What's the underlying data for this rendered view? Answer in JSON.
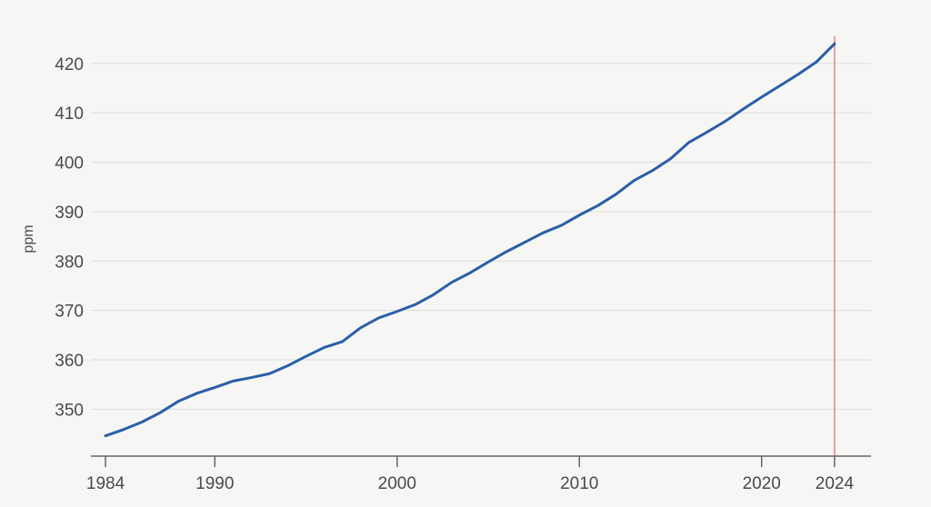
{
  "chart_data": {
    "type": "line",
    "title": "",
    "xlabel": "",
    "ylabel": "ppm",
    "xlim": [
      1983.2,
      2026.0
    ],
    "ylim": [
      340.5,
      425.5
    ],
    "yticks": [
      350,
      360,
      370,
      380,
      390,
      400,
      410,
      420
    ],
    "xticks": [
      1984,
      1990,
      2000,
      2010,
      2020,
      2024
    ],
    "grid": true,
    "legend": "none",
    "marker_year": 2024,
    "marker_color": "#e8828a",
    "line_color": "#2b5ea7",
    "series": [
      {
        "x": [
          1984,
          1985,
          1986,
          1987,
          1988,
          1989,
          1990,
          1991,
          1992,
          1993,
          1994,
          1995,
          1996,
          1997,
          1998,
          1999,
          2000,
          2001,
          2002,
          2003,
          2004,
          2005,
          2006,
          2007,
          2008,
          2009,
          2010,
          2011,
          2012,
          2013,
          2014,
          2015,
          2016,
          2017,
          2018,
          2019,
          2020,
          2021,
          2022,
          2023,
          2024
        ],
        "values": [
          344.6,
          345.9,
          347.4,
          349.3,
          351.6,
          353.2,
          354.4,
          355.7,
          356.4,
          357.2,
          358.8,
          360.7,
          362.5,
          363.7,
          366.5,
          368.5,
          369.8,
          371.2,
          373.2,
          375.7,
          377.6,
          379.8,
          381.9,
          383.8,
          385.7,
          387.2,
          389.3,
          391.2,
          393.5,
          396.3,
          398.3,
          400.7,
          404.0,
          406.1,
          408.3,
          410.8,
          413.2,
          415.5,
          417.8,
          420.3,
          424.0
        ]
      }
    ]
  }
}
